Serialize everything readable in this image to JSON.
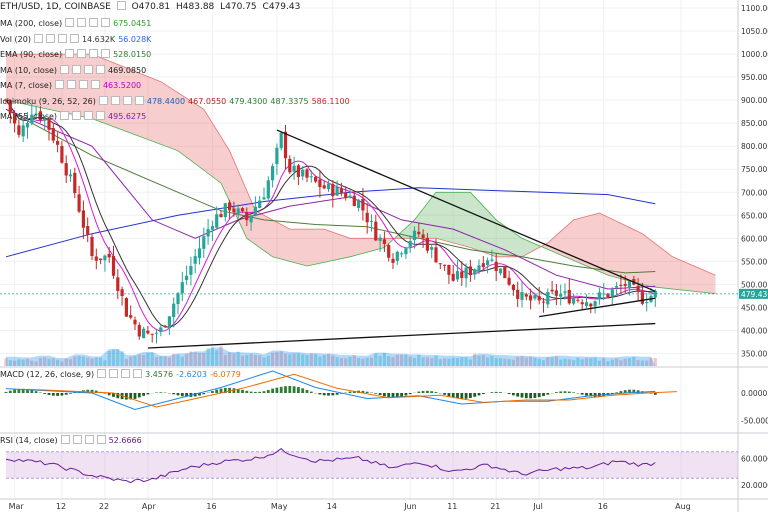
{
  "header": {
    "symbol": "ETH/USD, 1D, COINBASE",
    "open": "O470.81",
    "high": "H483.88",
    "low": "L470.75",
    "close": "C479.43"
  },
  "indicators": [
    {
      "label": "MA (200, close)",
      "values": [
        "675.0451"
      ],
      "colors": [
        "#2a9d2a"
      ]
    },
    {
      "label": "Vol (20)",
      "values": [
        "14.632K",
        "56.028K"
      ],
      "colors": [
        "#333333",
        "#2962ff"
      ]
    },
    {
      "label": "EMA (90, close)",
      "values": [
        "528.0150"
      ],
      "colors": [
        "#2e7d32"
      ]
    },
    {
      "label": "MA (10, close)",
      "values": [
        "469.0850"
      ],
      "colors": [
        "#222222"
      ]
    },
    {
      "label": "MA (7, close)",
      "values": [
        "463.5200"
      ],
      "colors": [
        "#c000c0"
      ]
    },
    {
      "label": "Ichimoku (9, 26, 52, 26)",
      "values": [
        "478.4400",
        "467.0550",
        "479.4300",
        "487.3375",
        "586.1100"
      ],
      "colors": [
        "#1565c0",
        "#b71c1c",
        "#2e7d32",
        "#2e7d32",
        "#c62828"
      ]
    },
    {
      "label": "MA (55, close)",
      "values": [
        "495.6275"
      ],
      "colors": [
        "#7b1fa2"
      ]
    }
  ],
  "macd_legend": {
    "label": "MACD (12, 26, close, 9)",
    "values": [
      "3.4576",
      "-2.6203",
      "-6.0779"
    ],
    "colors": [
      "#2e7d32",
      "#1e88e5",
      "#ef6c00"
    ]
  },
  "rsi_legend": {
    "label": "RSI (14, close)",
    "values": [
      "52.6666"
    ],
    "colors": [
      "#6a1b9a"
    ]
  },
  "last_price_label": "479.43",
  "chart_data": {
    "type": "candlestick",
    "price_axis": {
      "ticks": [
        350,
        400,
        450,
        500,
        550,
        600,
        650,
        700,
        750,
        800,
        850,
        900,
        950,
        1000,
        1050,
        1100
      ],
      "labels": [
        "350.00",
        "400.00",
        "450.00",
        "500.00",
        "550.00",
        "600.00",
        "650.00",
        "700.00",
        "750.00",
        "800.00",
        "850.00",
        "900.00",
        "950.00",
        "1000.00",
        "1050.00",
        "1100.00"
      ]
    },
    "macd_axis": {
      "labels": [
        "0.0000",
        "-50.0000"
      ],
      "ticks": [
        0,
        -50
      ]
    },
    "rsi_axis": {
      "labels": [
        "60.0000",
        "20.0000"
      ],
      "ticks": [
        60,
        20
      ],
      "bands": [
        30,
        70
      ]
    },
    "x_labels": [
      "Mar",
      "12",
      "22",
      "Apr",
      "16",
      "May",
      "14",
      "Jun",
      "11",
      "21",
      "Jul",
      "16",
      "Aug"
    ],
    "x_label_days": [
      2,
      13,
      23,
      33,
      48,
      63,
      76,
      94,
      104,
      114,
      124,
      139,
      157
    ],
    "price_key_points": [
      [
        0,
        900
      ],
      [
        3,
        820
      ],
      [
        6,
        880
      ],
      [
        9,
        860
      ],
      [
        12,
        800
      ],
      [
        16,
        700
      ],
      [
        20,
        560
      ],
      [
        24,
        560
      ],
      [
        28,
        440
      ],
      [
        31,
        400
      ],
      [
        33,
        390
      ],
      [
        36,
        400
      ],
      [
        40,
        480
      ],
      [
        44,
        560
      ],
      [
        48,
        640
      ],
      [
        52,
        670
      ],
      [
        56,
        640
      ],
      [
        60,
        700
      ],
      [
        62,
        750
      ],
      [
        64,
        820
      ],
      [
        66,
        750
      ],
      [
        70,
        730
      ],
      [
        74,
        710
      ],
      [
        78,
        700
      ],
      [
        82,
        680
      ],
      [
        86,
        610
      ],
      [
        90,
        560
      ],
      [
        94,
        600
      ],
      [
        96,
        610
      ],
      [
        100,
        560
      ],
      [
        104,
        510
      ],
      [
        108,
        530
      ],
      [
        112,
        560
      ],
      [
        116,
        520
      ],
      [
        120,
        470
      ],
      [
        124,
        460
      ],
      [
        128,
        480
      ],
      [
        132,
        470
      ],
      [
        136,
        465
      ],
      [
        140,
        480
      ],
      [
        144,
        500
      ],
      [
        148,
        470
      ],
      [
        151,
        479
      ]
    ],
    "ichimoku_span_a": [
      [
        0,
        900
      ],
      [
        20,
        860
      ],
      [
        40,
        790
      ],
      [
        50,
        720
      ],
      [
        56,
        600
      ],
      [
        62,
        560
      ],
      [
        70,
        540
      ],
      [
        80,
        560
      ],
      [
        88,
        580
      ],
      [
        95,
        640
      ],
      [
        100,
        700
      ],
      [
        108,
        700
      ],
      [
        114,
        640
      ],
      [
        120,
        600
      ],
      [
        130,
        560
      ],
      [
        140,
        520
      ],
      [
        150,
        495
      ],
      [
        165,
        480
      ]
    ],
    "ichimoku_span_b": [
      [
        0,
        1000
      ],
      [
        20,
        1000
      ],
      [
        36,
        940
      ],
      [
        46,
        880
      ],
      [
        52,
        790
      ],
      [
        58,
        660
      ],
      [
        66,
        620
      ],
      [
        74,
        620
      ],
      [
        80,
        600
      ],
      [
        86,
        600
      ],
      [
        92,
        600
      ],
      [
        100,
        600
      ],
      [
        108,
        580
      ],
      [
        114,
        560
      ],
      [
        120,
        560
      ],
      [
        126,
        590
      ],
      [
        132,
        640
      ],
      [
        138,
        655
      ],
      [
        148,
        610
      ],
      [
        155,
        560
      ],
      [
        165,
        520
      ]
    ],
    "ema90": [
      [
        0,
        880
      ],
      [
        20,
        780
      ],
      [
        40,
        700
      ],
      [
        50,
        660
      ],
      [
        60,
        640
      ],
      [
        72,
        630
      ],
      [
        84,
        625
      ],
      [
        96,
        600
      ],
      [
        108,
        575
      ],
      [
        120,
        560
      ],
      [
        132,
        540
      ],
      [
        144,
        525
      ],
      [
        151,
        528
      ]
    ],
    "ma200": [
      [
        0,
        560
      ],
      [
        20,
        610
      ],
      [
        40,
        650
      ],
      [
        60,
        680
      ],
      [
        80,
        700
      ],
      [
        96,
        710
      ],
      [
        110,
        705
      ],
      [
        125,
        700
      ],
      [
        140,
        695
      ],
      [
        151,
        675
      ]
    ],
    "ma55": [
      [
        0,
        880
      ],
      [
        20,
        800
      ],
      [
        34,
        640
      ],
      [
        44,
        600
      ],
      [
        54,
        640
      ],
      [
        66,
        670
      ],
      [
        80,
        690
      ],
      [
        92,
        640
      ],
      [
        104,
        620
      ],
      [
        116,
        575
      ],
      [
        128,
        520
      ],
      [
        140,
        490
      ],
      [
        151,
        496
      ]
    ],
    "trendline_upper": [
      [
        63,
        835
      ],
      [
        151,
        485
      ]
    ],
    "triangle_lower": [
      [
        124,
        430
      ],
      [
        151,
        470
      ]
    ],
    "support_line": [
      [
        33,
        362
      ],
      [
        151,
        415
      ]
    ],
    "volume_profile": [
      14,
      12,
      18,
      10,
      22,
      15,
      40,
      20,
      30,
      18,
      25,
      32,
      45,
      30,
      28,
      22,
      35,
      30,
      26,
      24,
      20,
      18,
      28,
      24,
      22,
      20,
      18,
      16,
      24,
      20,
      18,
      16,
      14,
      18,
      15,
      14,
      12,
      16,
      14,
      12
    ],
    "macd_profile": [
      [
        0,
        8
      ],
      [
        20,
        0
      ],
      [
        30,
        -30
      ],
      [
        40,
        -10
      ],
      [
        50,
        10
      ],
      [
        62,
        40
      ],
      [
        72,
        10
      ],
      [
        84,
        -10
      ],
      [
        96,
        -5
      ],
      [
        106,
        -20
      ],
      [
        116,
        -15
      ],
      [
        126,
        -15
      ],
      [
        136,
        -5
      ],
      [
        144,
        0
      ],
      [
        151,
        3
      ]
    ],
    "rsi_profile": [
      [
        0,
        60
      ],
      [
        10,
        52
      ],
      [
        20,
        34
      ],
      [
        28,
        25
      ],
      [
        34,
        28
      ],
      [
        42,
        45
      ],
      [
        50,
        55
      ],
      [
        58,
        60
      ],
      [
        64,
        72
      ],
      [
        72,
        56
      ],
      [
        82,
        60
      ],
      [
        90,
        45
      ],
      [
        96,
        55
      ],
      [
        104,
        40
      ],
      [
        112,
        50
      ],
      [
        120,
        36
      ],
      [
        128,
        44
      ],
      [
        136,
        46
      ],
      [
        142,
        56
      ],
      [
        148,
        50
      ],
      [
        151,
        53
      ]
    ]
  }
}
